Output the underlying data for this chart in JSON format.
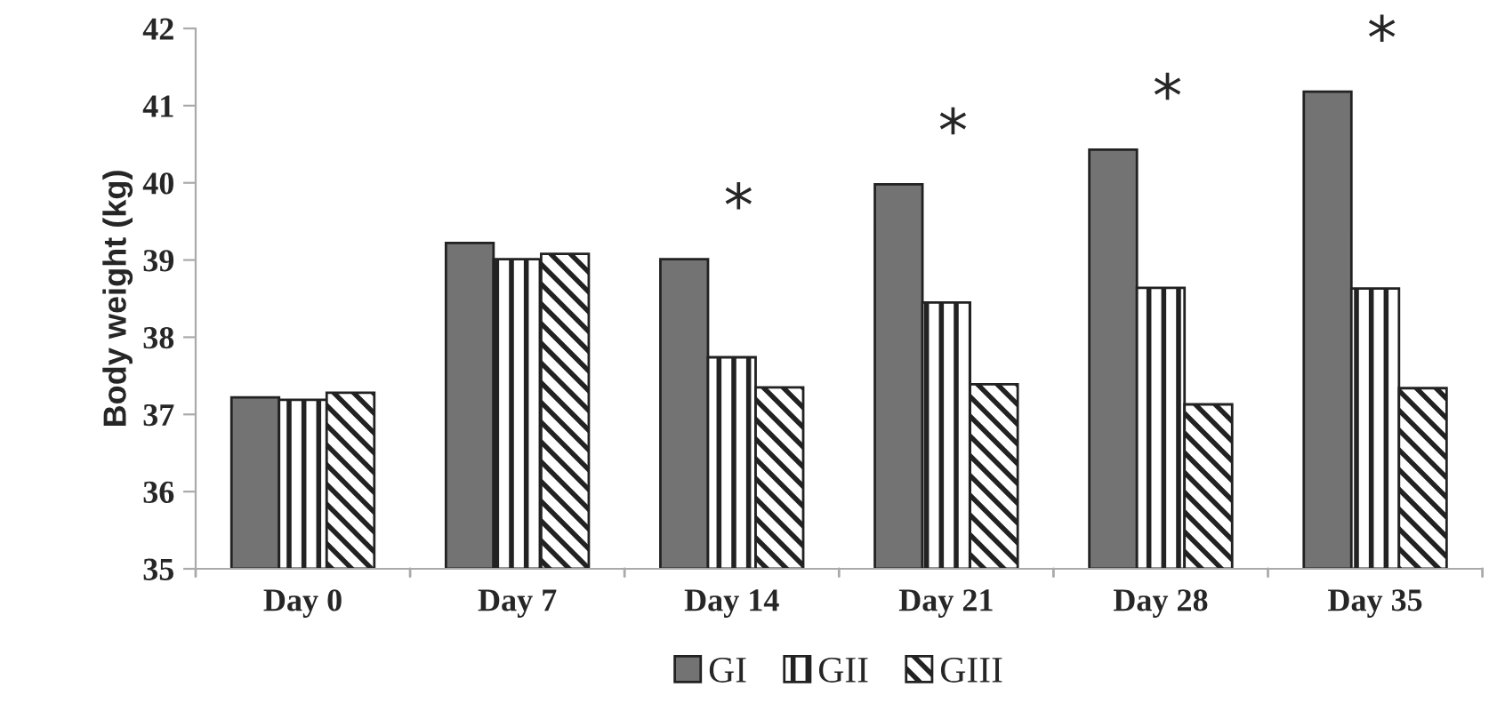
{
  "chart_data": {
    "type": "bar",
    "ylabel": "Body weight (kg)",
    "categories": [
      "Day 0",
      "Day 7",
      "Day 14",
      "Day 21",
      "Day 28",
      "Day 35"
    ],
    "series": [
      {
        "name": "GI",
        "color": "#737373",
        "values": [
          37.22,
          39.22,
          39.01,
          39.98,
          40.43,
          41.18
        ]
      },
      {
        "name": "GII",
        "color": "#222222",
        "values": [
          37.19,
          39.01,
          37.74,
          38.45,
          38.64,
          38.63
        ]
      },
      {
        "name": "GIII",
        "color": "#222222",
        "values": [
          37.28,
          39.08,
          37.35,
          37.39,
          37.13,
          37.34
        ]
      }
    ],
    "ylim": [
      35,
      42
    ],
    "yticks": [
      35,
      36,
      37,
      38,
      39,
      40,
      41,
      42
    ],
    "grid": false,
    "legend": "bottom",
    "annotations": [
      "*",
      "*",
      "*",
      "*"
    ]
  }
}
